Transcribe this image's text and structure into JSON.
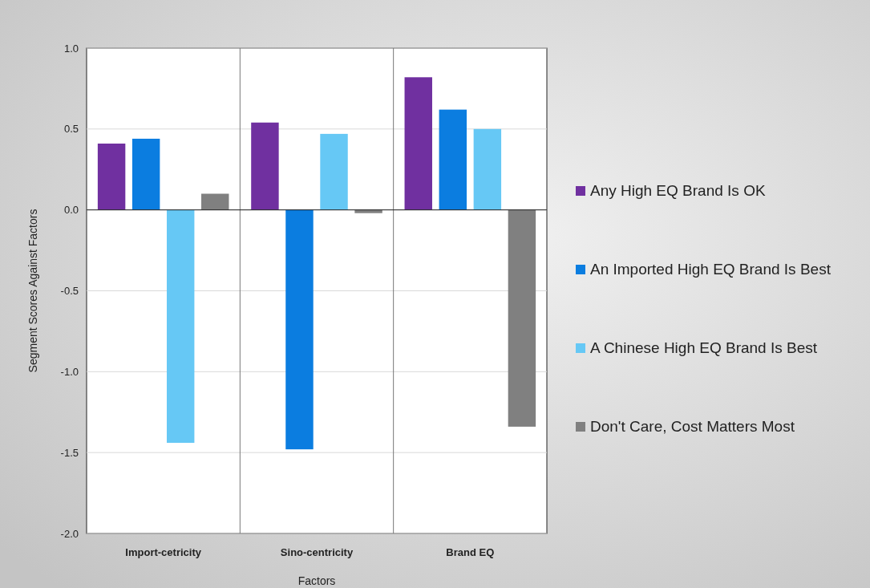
{
  "chart_data": {
    "type": "bar",
    "xlabel": "Factors",
    "ylabel": "Segment Scores Against Factors",
    "categories": [
      "Import-cetricity",
      "Sino-centricity",
      "Brand EQ"
    ],
    "series": [
      {
        "name": "Any High EQ Brand Is OK",
        "color": "#7030a0",
        "values": [
          0.41,
          0.54,
          0.82
        ]
      },
      {
        "name": "An Imported High EQ Brand Is Best",
        "color": "#0b7de0",
        "values": [
          0.44,
          -1.48,
          0.62
        ]
      },
      {
        "name": "A Chinese High EQ Brand Is Best",
        "color": "#66c8f5",
        "values": [
          -1.44,
          0.47,
          0.5
        ]
      },
      {
        "name": "Don't Care, Cost Matters Most",
        "color": "#808080",
        "values": [
          0.1,
          -0.02,
          -1.34
        ]
      }
    ],
    "ylim": [
      -2,
      1
    ],
    "yticks": [
      {
        "value": -2,
        "label": "-2.0"
      },
      {
        "value": -1.5,
        "label": "-1.5"
      },
      {
        "value": -1,
        "label": "-1.0"
      },
      {
        "value": -0.5,
        "label": "-0.5"
      },
      {
        "value": 0,
        "label": "0.0"
      },
      {
        "value": 0.5,
        "label": "0.5"
      },
      {
        "value": 1,
        "label": "1.0"
      }
    ],
    "grid": true,
    "legend": "right"
  }
}
